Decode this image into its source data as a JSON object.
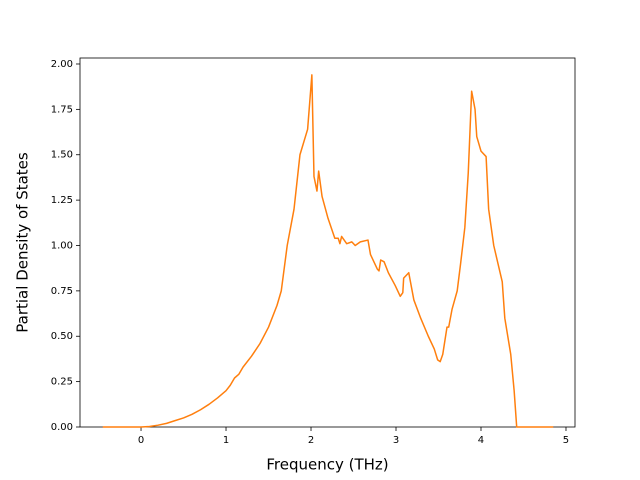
{
  "chart_data": {
    "type": "line",
    "x_label": "Frequency (THz)",
    "y_label": "Partial Density of States",
    "color": "#ff7f0e",
    "x": [
      -0.45,
      0,
      0.1,
      0.2,
      0.3,
      0.4,
      0.5,
      0.6,
      0.7,
      0.8,
      0.9,
      1.0,
      1.05,
      1.1,
      1.15,
      1.2,
      1.3,
      1.4,
      1.5,
      1.6,
      1.65,
      1.72,
      1.8,
      1.87,
      1.96,
      2.01,
      2.035,
      2.07,
      2.09,
      2.13,
      2.2,
      2.28,
      2.32,
      2.34,
      2.36,
      2.42,
      2.48,
      2.52,
      2.58,
      2.67,
      2.7,
      2.78,
      2.8,
      2.82,
      2.86,
      2.91,
      2.99,
      3.05,
      3.08,
      3.09,
      3.15,
      3.21,
      3.29,
      3.38,
      3.45,
      3.49,
      3.52,
      3.55,
      3.6,
      3.62,
      3.66,
      3.72,
      3.76,
      3.81,
      3.85,
      3.89,
      3.93,
      3.95,
      4.0,
      4.06,
      4.09,
      4.15,
      4.2,
      4.25,
      4.28,
      4.35,
      4.39,
      4.42,
      4.85
    ],
    "values": [
      0,
      0,
      0.003,
      0.01,
      0.02,
      0.035,
      0.05,
      0.07,
      0.095,
      0.125,
      0.16,
      0.2,
      0.23,
      0.27,
      0.29,
      0.33,
      0.39,
      0.46,
      0.55,
      0.67,
      0.75,
      1.0,
      1.2,
      1.5,
      1.64,
      1.94,
      1.38,
      1.3,
      1.41,
      1.27,
      1.15,
      1.04,
      1.04,
      1.01,
      1.05,
      1.01,
      1.02,
      1.0,
      1.02,
      1.03,
      0.95,
      0.87,
      0.86,
      0.92,
      0.91,
      0.85,
      0.78,
      0.72,
      0.74,
      0.82,
      0.85,
      0.7,
      0.6,
      0.5,
      0.43,
      0.37,
      0.36,
      0.4,
      0.55,
      0.55,
      0.65,
      0.75,
      0.9,
      1.1,
      1.4,
      1.85,
      1.75,
      1.6,
      1.52,
      1.49,
      1.2,
      1.0,
      0.9,
      0.8,
      0.6,
      0.4,
      0.2,
      0,
      0
    ],
    "xlim": [
      -0.718,
      5.106
    ],
    "ylim": [
      0,
      2.033
    ],
    "xticks": [
      0,
      1,
      2,
      3,
      4,
      5
    ],
    "yticks": [
      {
        "value": 0,
        "label": "0.00"
      },
      {
        "value": 0.25,
        "label": "0.25"
      },
      {
        "value": 0.5,
        "label": "0.50"
      },
      {
        "value": 0.75,
        "label": "0.75"
      },
      {
        "value": 1,
        "label": "1.00"
      },
      {
        "value": 1.25,
        "label": "1.25"
      },
      {
        "value": 1.5,
        "label": "1.50"
      },
      {
        "value": 1.75,
        "label": "1.75"
      },
      {
        "value": 2,
        "label": "2.00"
      }
    ]
  }
}
